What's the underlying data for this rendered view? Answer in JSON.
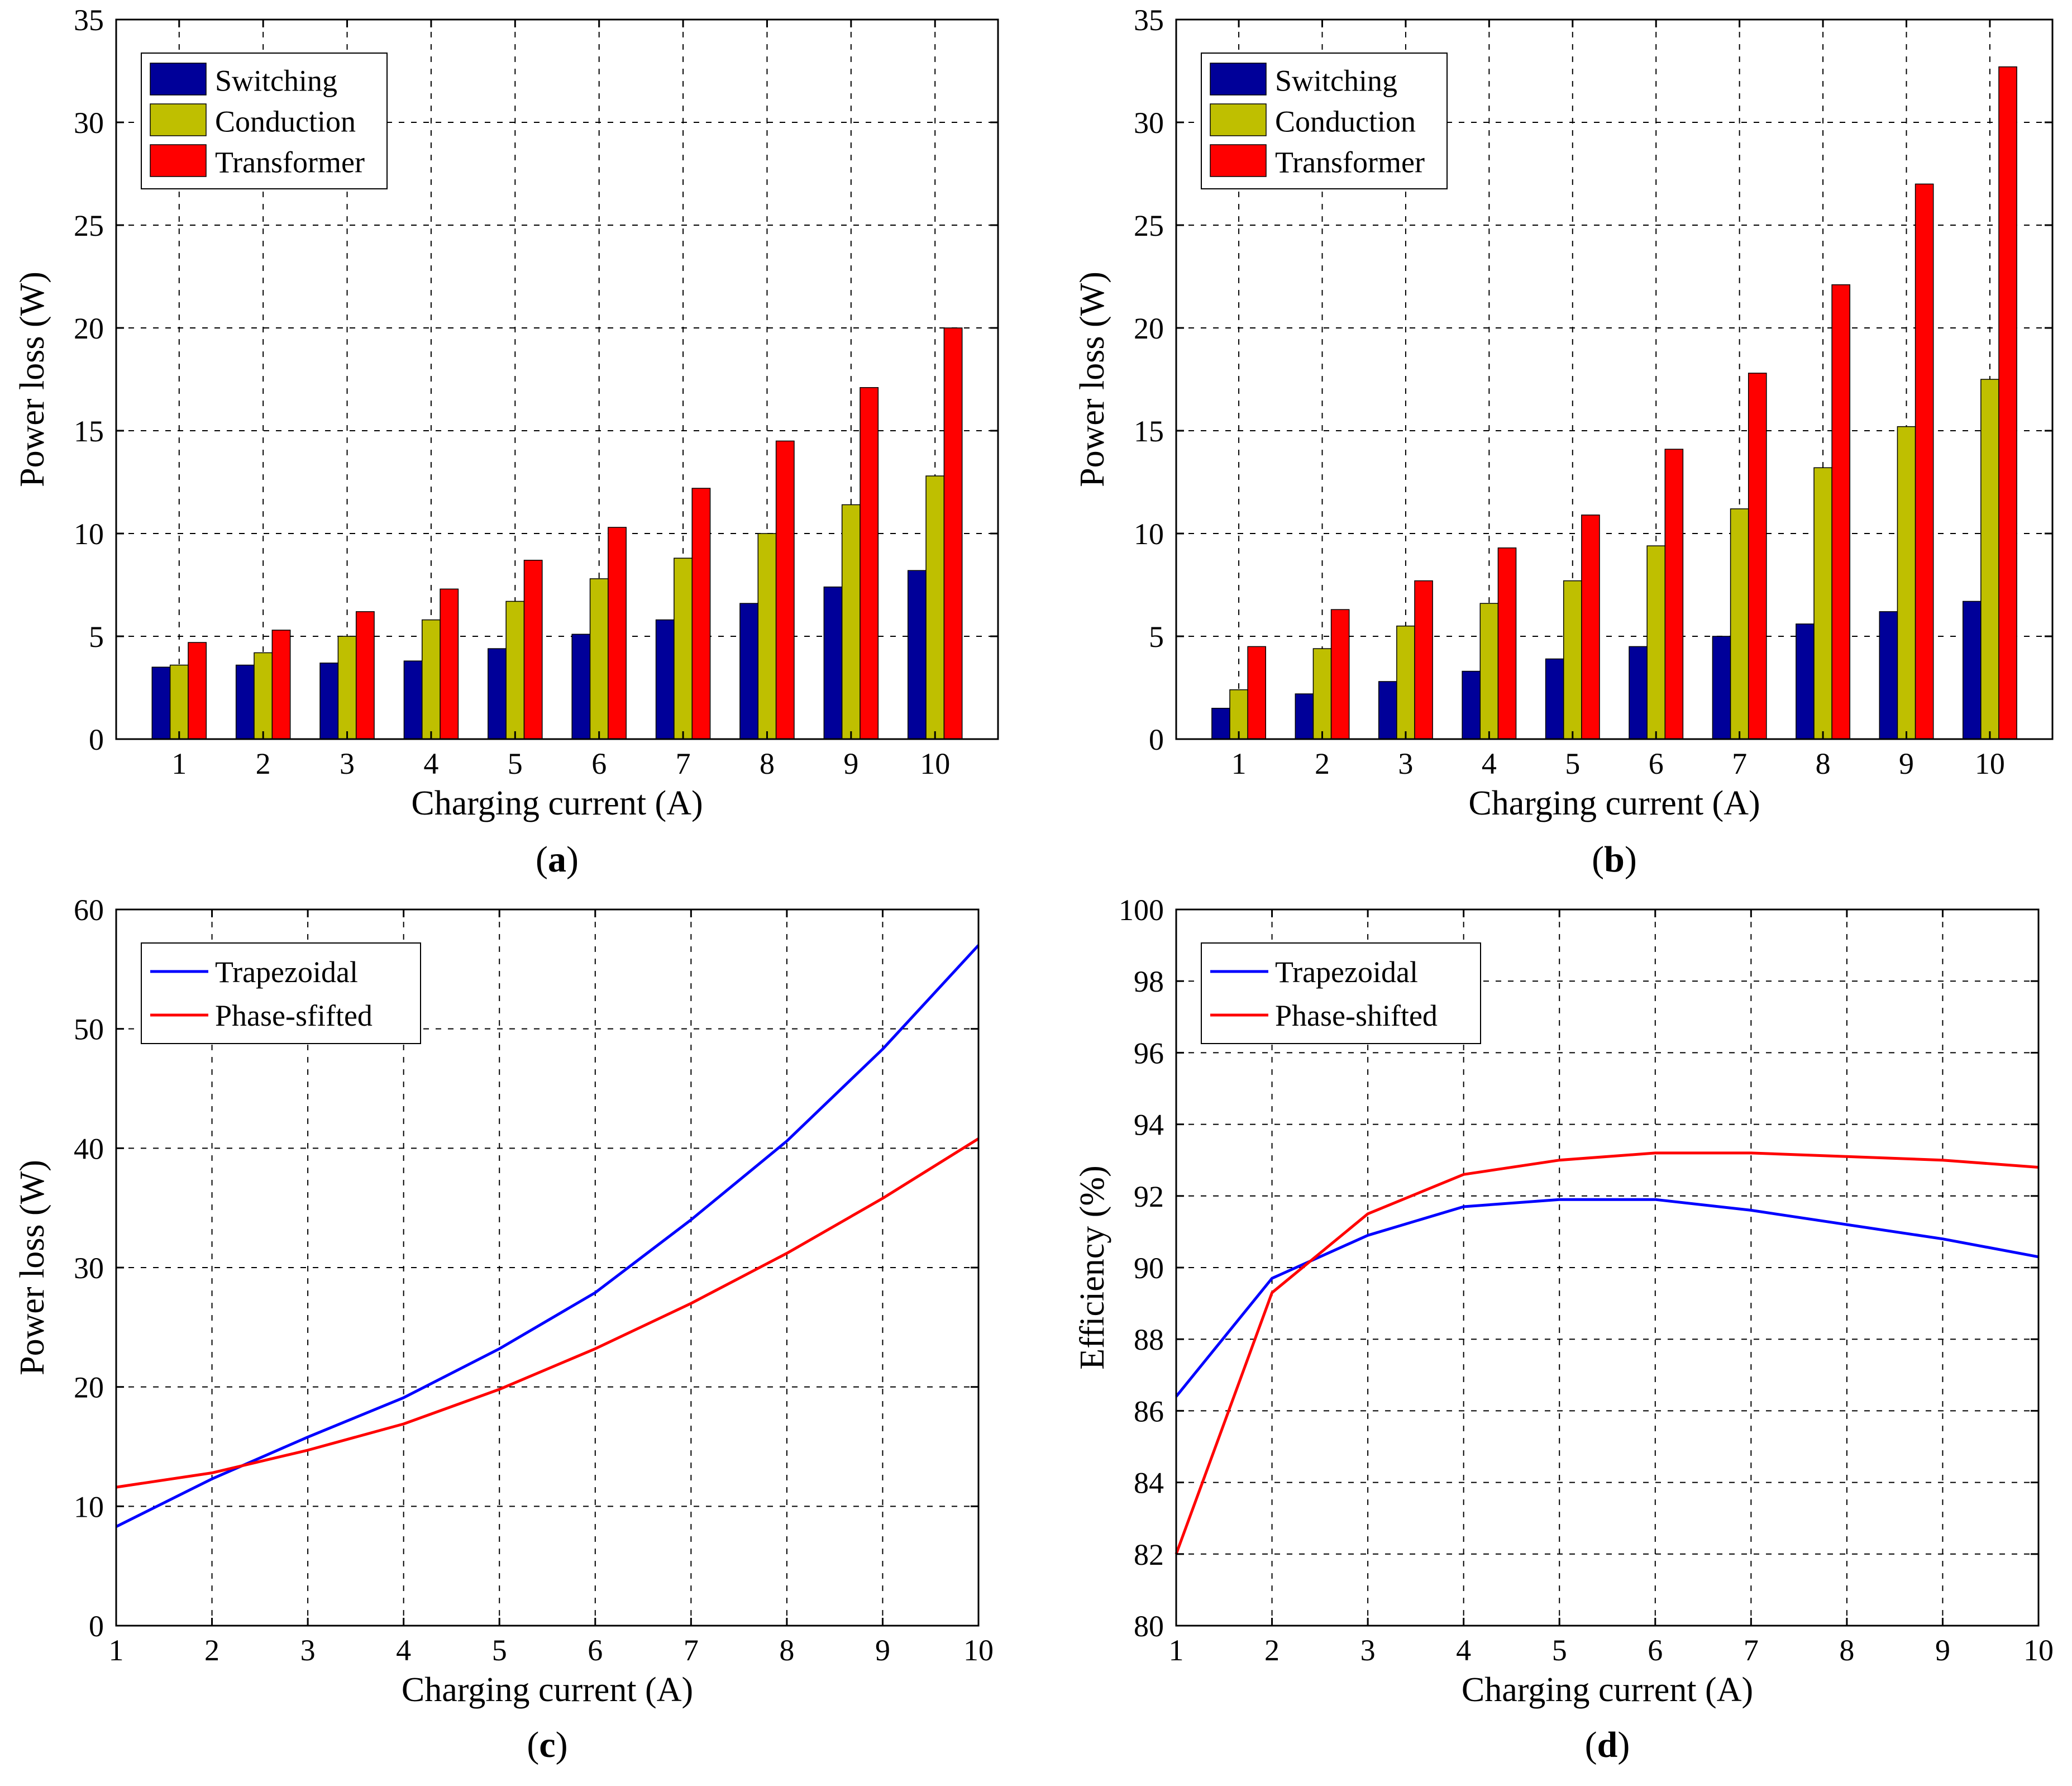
{
  "colors": {
    "switching": "#000099",
    "conduction": "#BFBF00",
    "transformer": "#FF0000",
    "trapezoidal": "#0000FF",
    "phase_shifted": "#FF0000",
    "axis": "#000000",
    "background": "#FFFFFF"
  },
  "chart_data": [
    {
      "type": "bar",
      "caption_letter": "a",
      "categories": [
        1,
        2,
        3,
        4,
        5,
        6,
        7,
        8,
        9,
        10
      ],
      "series": [
        {
          "name": "Switching",
          "color_key": "switching",
          "values": [
            3.5,
            3.6,
            3.7,
            3.8,
            4.4,
            5.1,
            5.8,
            6.6,
            7.4,
            8.2
          ]
        },
        {
          "name": "Conduction",
          "color_key": "conduction",
          "values": [
            3.6,
            4.2,
            5.0,
            5.8,
            6.7,
            7.8,
            8.8,
            10.0,
            11.4,
            12.8
          ]
        },
        {
          "name": "Transformer",
          "color_key": "transformer",
          "values": [
            4.7,
            5.3,
            6.2,
            7.3,
            8.7,
            10.3,
            12.2,
            14.5,
            17.1,
            20.0
          ]
        }
      ],
      "xlabel": "Charging current  (A)",
      "ylabel": "Power loss  (W)",
      "ylim": [
        0,
        35
      ],
      "yticks": [
        0,
        5,
        10,
        15,
        20,
        25,
        30,
        35
      ],
      "grid": true,
      "legend_position": "top-left"
    },
    {
      "type": "bar",
      "caption_letter": "b",
      "categories": [
        1,
        2,
        3,
        4,
        5,
        6,
        7,
        8,
        9,
        10
      ],
      "series": [
        {
          "name": "Switching",
          "color_key": "switching",
          "values": [
            1.5,
            2.2,
            2.8,
            3.3,
            3.9,
            4.5,
            5.0,
            5.6,
            6.2,
            6.7
          ]
        },
        {
          "name": "Conduction",
          "color_key": "conduction",
          "values": [
            2.4,
            4.4,
            5.5,
            6.6,
            7.7,
            9.4,
            11.2,
            13.2,
            15.2,
            17.5
          ]
        },
        {
          "name": "Transformer",
          "color_key": "transformer",
          "values": [
            4.5,
            6.3,
            7.7,
            9.3,
            10.9,
            14.1,
            17.8,
            22.1,
            27.0,
            32.7
          ]
        }
      ],
      "xlabel": "Charging current  (A)",
      "ylabel": "Power loss  (W)",
      "ylim": [
        0,
        35
      ],
      "yticks": [
        0,
        5,
        10,
        15,
        20,
        25,
        30,
        35
      ],
      "grid": true,
      "legend_position": "top-left"
    },
    {
      "type": "line",
      "caption_letter": "c",
      "x": [
        1,
        2,
        3,
        4,
        5,
        6,
        7,
        8,
        9,
        10
      ],
      "series": [
        {
          "name": "Trapezoidal",
          "color_key": "trapezoidal",
          "values": [
            8.3,
            12.3,
            15.8,
            19.1,
            23.2,
            27.9,
            34.0,
            40.6,
            48.3,
            57.0
          ]
        },
        {
          "name": "Phase-sfifted",
          "color_key": "phase_shifted",
          "values": [
            11.6,
            12.8,
            14.7,
            16.9,
            19.8,
            23.2,
            27.0,
            31.2,
            35.8,
            40.8
          ]
        }
      ],
      "xlabel": "Charging current  (A)",
      "ylabel": "Power loss  (W)",
      "xlim": [
        1,
        10
      ],
      "ylim": [
        0,
        60
      ],
      "xticks": [
        1,
        2,
        3,
        4,
        5,
        6,
        7,
        8,
        9,
        10
      ],
      "yticks": [
        0,
        10,
        20,
        30,
        40,
        50,
        60
      ],
      "grid": true,
      "legend_position": "top-left"
    },
    {
      "type": "line",
      "caption_letter": "d",
      "x": [
        1,
        2,
        3,
        4,
        5,
        6,
        7,
        8,
        9,
        10
      ],
      "series": [
        {
          "name": "Trapezoidal",
          "color_key": "trapezoidal",
          "values": [
            86.4,
            89.7,
            90.9,
            91.7,
            91.9,
            91.9,
            91.6,
            91.2,
            90.8,
            90.3
          ]
        },
        {
          "name": "Phase-shifted",
          "color_key": "phase_shifted",
          "values": [
            82.0,
            89.3,
            91.5,
            92.6,
            93.0,
            93.2,
            93.2,
            93.1,
            93.0,
            92.8
          ]
        }
      ],
      "xlabel": "Charging current  (A)",
      "ylabel": "Efficiency  (%)",
      "xlim": [
        1,
        10
      ],
      "ylim": [
        80,
        100
      ],
      "xticks": [
        1,
        2,
        3,
        4,
        5,
        6,
        7,
        8,
        9,
        10
      ],
      "yticks": [
        80,
        82,
        84,
        86,
        88,
        90,
        92,
        94,
        96,
        98,
        100
      ],
      "grid": true,
      "legend_position": "top-left"
    }
  ]
}
